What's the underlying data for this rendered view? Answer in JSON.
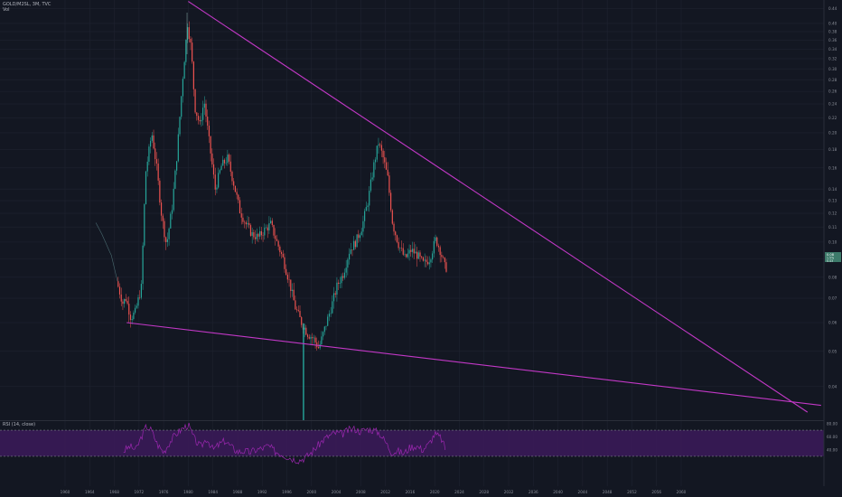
{
  "header": {
    "symbol": "GOLD/M2SL, 3M, TVC",
    "vol_label": "Vol"
  },
  "rsi": {
    "label": "RSI (14, close)"
  },
  "price_label": {
    "line1": "0.08",
    "line2": "1.5%",
    "line3": "0.43"
  },
  "colors": {
    "background": "#131722",
    "grid": "#1f2330",
    "up": "#26a69a",
    "down": "#ef5350",
    "trendline": "#c238c6",
    "rsi_line": "#9c27b0",
    "rsi_band": "#3c1a5b",
    "axis_text": "#8a8e98",
    "price_tag": "#3d7a6a"
  },
  "chart_data": [
    {
      "type": "line",
      "title": "GOLD/M2SL, 3M, TVC",
      "y_scale": "log",
      "y_ticks": [
        0.44,
        0.4,
        0.38,
        0.36,
        0.34,
        0.32,
        0.3,
        0.28,
        0.26,
        0.24,
        0.22,
        0.2,
        0.18,
        0.16,
        0.14,
        0.13,
        0.12,
        0.11,
        0.1,
        0.09,
        0.08,
        0.07,
        0.06,
        0.05,
        0.04,
        0.03
      ],
      "ylim": [
        0.027,
        0.46
      ],
      "x_ticks": [
        1960,
        1964,
        1968,
        1972,
        1976,
        1980,
        1984,
        1988,
        1992,
        1996,
        2000,
        2004,
        2008,
        2012,
        2016,
        2020,
        2024,
        2028,
        2032,
        2036,
        2040,
        2044,
        2048,
        2052,
        2056,
        2060
      ],
      "xlim": [
        1955.7,
        2083
      ],
      "series": [
        {
          "values_x": [
            1965.0,
            1966.0,
            1967.5,
            1968.5,
            1969.5,
            1970.0,
            1970.8,
            1971.5,
            1972.5,
            1973.2,
            1974.2,
            1975.0,
            1975.8,
            1976.6,
            1977.5,
            1978.3,
            1979.2,
            1980.0,
            1980.6,
            1981.2,
            1982.0,
            1982.7,
            1983.5,
            1984.5,
            1985.5,
            1986.5,
            1987.5,
            1988.5,
            1989.5,
            1990.5,
            1991.5,
            1992.5,
            1993.5,
            1994.5,
            1995.5,
            1996.5,
            1997.5,
            1998.5,
            1999.5,
            2000.5,
            2001.3,
            2002.3,
            2003.3,
            2004.3,
            2005.3,
            2006.3,
            2007.3,
            2008.3,
            2009.3,
            2010.3,
            2011.0,
            2011.7,
            2012.5,
            2013.3,
            2014.3,
            2015.3,
            2016.3,
            2017.3,
            2018.3,
            2019.3,
            2020.3,
            2021.0,
            2021.8
          ],
          "values": [
            0.113,
            0.105,
            0.092,
            0.078,
            0.068,
            0.07,
            0.062,
            0.064,
            0.075,
            0.155,
            0.2,
            0.16,
            0.118,
            0.098,
            0.125,
            0.175,
            0.28,
            0.4,
            0.34,
            0.235,
            0.21,
            0.245,
            0.19,
            0.14,
            0.162,
            0.17,
            0.145,
            0.122,
            0.112,
            0.105,
            0.103,
            0.108,
            0.112,
            0.1,
            0.09,
            0.078,
            0.066,
            0.06,
            0.056,
            0.054,
            0.051,
            0.058,
            0.066,
            0.076,
            0.082,
            0.095,
            0.1,
            0.11,
            0.13,
            0.165,
            0.188,
            0.172,
            0.15,
            0.112,
            0.098,
            0.09,
            0.095,
            0.092,
            0.087,
            0.09,
            0.102,
            0.095,
            0.085
          ]
        }
      ],
      "trendlines": [
        {
          "from": [
            1980.0,
            0.46
          ],
          "to": [
            2080.5,
            0.034
          ]
        },
        {
          "from": [
            1970.0,
            0.06
          ],
          "to": [
            2082.7,
            0.0355
          ]
        }
      ]
    },
    {
      "type": "line",
      "title": "RSI (14, close)",
      "y_ticks": [
        80.0,
        60.0,
        40.0
      ],
      "ylim": [
        20,
        80
      ],
      "band": [
        30,
        70
      ],
      "series": [
        {
          "values_x": [
            1969.5,
            1970.5,
            1971.5,
            1972.5,
            1973.2,
            1974.0,
            1975.0,
            1976.0,
            1977.0,
            1978.0,
            1979.0,
            1980.0,
            1981.0,
            1982.0,
            1983.0,
            1984.0,
            1985.0,
            1986.0,
            1987.0,
            1988.0,
            1989.0,
            1990.0,
            1991.0,
            1992.0,
            1993.0,
            1994.0,
            1995.0,
            1996.0,
            1997.0,
            1998.0,
            1999.0,
            2000.0,
            2001.0,
            2002.0,
            2003.0,
            2004.0,
            2005.0,
            2006.0,
            2007.0,
            2008.0,
            2009.0,
            2010.0,
            2011.0,
            2012.0,
            2013.0,
            2014.0,
            2015.0,
            2016.0,
            2017.0,
            2018.0,
            2019.0,
            2020.0,
            2021.0,
            2021.8
          ],
          "values": [
            38,
            45,
            40,
            62,
            76,
            70,
            48,
            36,
            52,
            64,
            72,
            78,
            56,
            44,
            58,
            40,
            48,
            54,
            44,
            37,
            38,
            36,
            40,
            42,
            46,
            38,
            34,
            30,
            26,
            24,
            28,
            36,
            46,
            56,
            62,
            66,
            64,
            70,
            72,
            68,
            72,
            70,
            66,
            52,
            36,
            38,
            34,
            44,
            46,
            40,
            48,
            64,
            58,
            40
          ]
        }
      ]
    }
  ]
}
